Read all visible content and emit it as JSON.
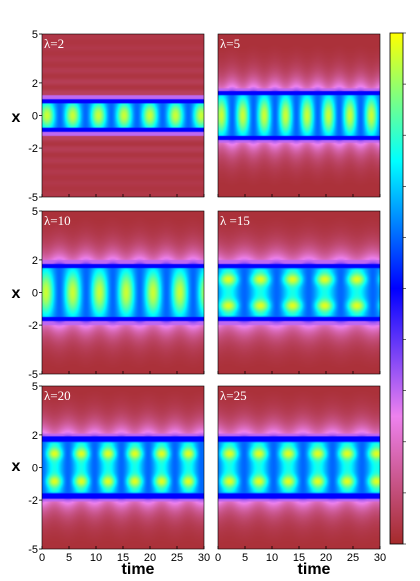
{
  "chart_data": {
    "type": "heatmap",
    "layout": "3 rows x 2 columns of panels sharing axes",
    "xlabel": "time",
    "ylabel": "x",
    "xlim": [
      0,
      30
    ],
    "ylim": [
      -5,
      5
    ],
    "x_ticks": [
      "0",
      "5",
      "10",
      "15",
      "20",
      "25",
      "30"
    ],
    "y_ticks": [
      "5",
      "2",
      "0",
      "-2",
      "-5"
    ],
    "colormap": [
      "#a52a2a",
      "#ee82ee",
      "#0000ff",
      "#00ffff",
      "#ffff00"
    ],
    "colorbar": {
      "position": "right",
      "tick_labels": []
    },
    "panels": [
      {
        "label": "λ=2",
        "lambda": 2,
        "band_halfwidth": 1.05,
        "peak_period": 4.8,
        "peak_phase": 0.8
      },
      {
        "label": "λ=5",
        "lambda": 5,
        "band_halfwidth": 1.5,
        "peak_period": 4.0,
        "peak_phase": 0.5
      },
      {
        "label": "λ=10",
        "lambda": 10,
        "band_halfwidth": 1.8,
        "peak_period": 5.0,
        "peak_phase": 0.6
      },
      {
        "label": "λ =15",
        "lambda": 15,
        "band_halfwidth": 1.8,
        "peak_period": 6.0,
        "peak_phase": 1.8
      },
      {
        "label": "λ=20",
        "lambda": 20,
        "band_halfwidth": 1.9,
        "peak_period": 5.0,
        "peak_phase": 2.2
      },
      {
        "label": "λ=25",
        "lambda": 25,
        "band_halfwidth": 1.9,
        "peak_period": 5.5,
        "peak_phase": 2.0
      }
    ]
  }
}
